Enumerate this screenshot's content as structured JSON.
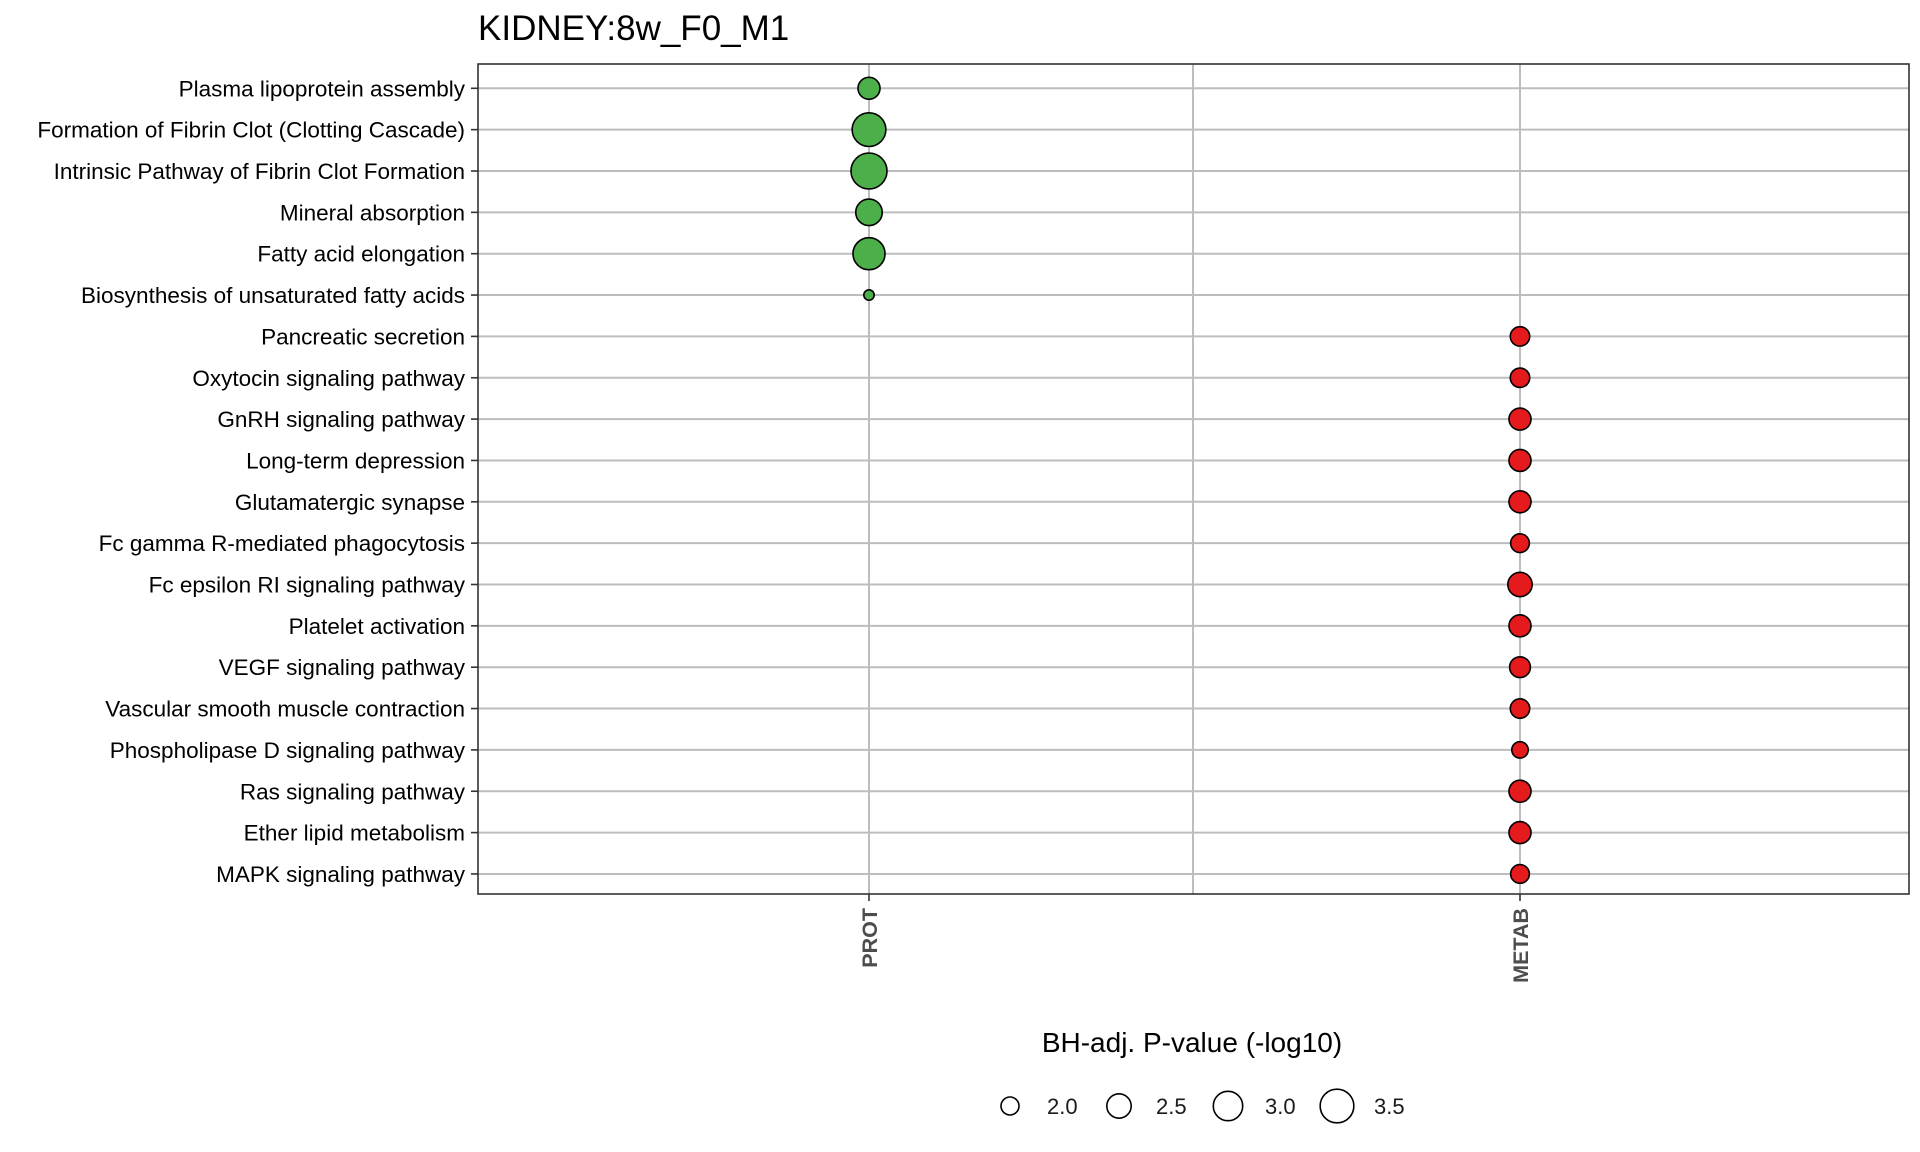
{
  "chart_data": {
    "type": "scatter",
    "title": "KIDNEY:8w_F0_M1",
    "xlabel": "",
    "ylabel": "",
    "x_categories": [
      "PROT",
      "METAB"
    ],
    "y_categories": [
      "Plasma lipoprotein assembly",
      "Formation of Fibrin Clot (Clotting Cascade)",
      "Intrinsic Pathway of Fibrin Clot Formation",
      "Mineral absorption",
      "Fatty acid elongation",
      "Biosynthesis of unsaturated fatty acids",
      "Pancreatic secretion",
      "Oxytocin signaling pathway",
      "GnRH signaling pathway",
      "Long-term depression",
      "Glutamatergic synapse",
      "Fc gamma R-mediated phagocytosis",
      "Fc epsilon RI signaling pathway",
      "Platelet activation",
      "VEGF signaling pathway",
      "Vascular smooth muscle contraction",
      "Phospholipase D signaling pathway",
      "Ras signaling pathway",
      "Ether lipid metabolism",
      "MAPK signaling pathway"
    ],
    "points": [
      {
        "pathway": "Plasma lipoprotein assembly",
        "dataset": "PROT",
        "value": 2.3
      },
      {
        "pathway": "Formation of Fibrin Clot (Clotting Cascade)",
        "dataset": "PROT",
        "value": 3.5
      },
      {
        "pathway": "Intrinsic Pathway of Fibrin Clot Formation",
        "dataset": "PROT",
        "value": 3.8
      },
      {
        "pathway": "Mineral absorption",
        "dataset": "PROT",
        "value": 2.7
      },
      {
        "pathway": "Fatty acid elongation",
        "dataset": "PROT",
        "value": 3.3
      },
      {
        "pathway": "Biosynthesis of unsaturated fatty acids",
        "dataset": "PROT",
        "value": 1.6
      },
      {
        "pathway": "Pancreatic secretion",
        "dataset": "METAB",
        "value": 2.1
      },
      {
        "pathway": "Oxytocin signaling pathway",
        "dataset": "METAB",
        "value": 2.1
      },
      {
        "pathway": "GnRH signaling pathway",
        "dataset": "METAB",
        "value": 2.3
      },
      {
        "pathway": "Long-term depression",
        "dataset": "METAB",
        "value": 2.3
      },
      {
        "pathway": "Glutamatergic synapse",
        "dataset": "METAB",
        "value": 2.3
      },
      {
        "pathway": "Fc gamma R-mediated phagocytosis",
        "dataset": "METAB",
        "value": 2.05
      },
      {
        "pathway": "Fc epsilon RI signaling pathway",
        "dataset": "METAB",
        "value": 2.5
      },
      {
        "pathway": "Platelet activation",
        "dataset": "METAB",
        "value": 2.3
      },
      {
        "pathway": "VEGF signaling pathway",
        "dataset": "METAB",
        "value": 2.2
      },
      {
        "pathway": "Vascular smooth muscle contraction",
        "dataset": "METAB",
        "value": 2.1
      },
      {
        "pathway": "Phospholipase D signaling pathway",
        "dataset": "METAB",
        "value": 1.9
      },
      {
        "pathway": "Ras signaling pathway",
        "dataset": "METAB",
        "value": 2.3
      },
      {
        "pathway": "Ether lipid metabolism",
        "dataset": "METAB",
        "value": 2.3
      },
      {
        "pathway": "MAPK signaling pathway",
        "dataset": "METAB",
        "value": 2.05
      }
    ],
    "colors": {
      "PROT": "#4daf4a",
      "METAB": "#e41a1c"
    },
    "size_legend": {
      "title": "BH-adj. P-value (-log10)",
      "breaks": [
        2.0,
        2.5,
        3.0,
        3.5
      ],
      "labels": [
        "2.0",
        "2.5",
        "3.0",
        "3.5"
      ],
      "position": "bottom"
    },
    "grid": true
  }
}
